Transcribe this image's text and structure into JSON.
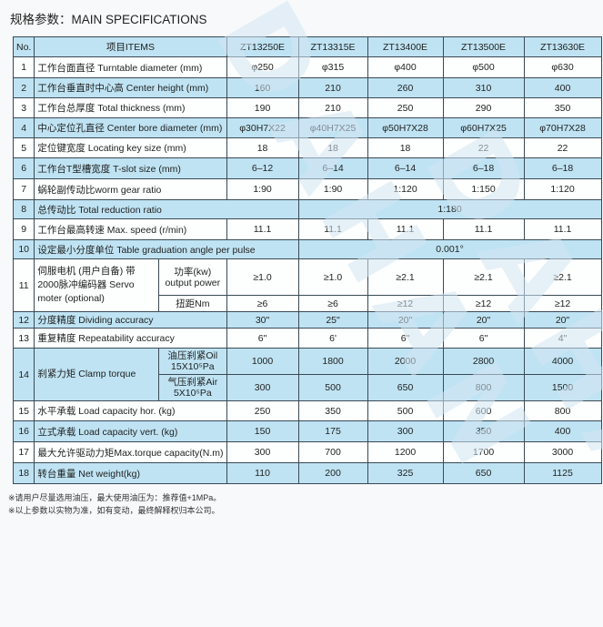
{
  "title": "规格参数：MAIN SPECIFICATIONS",
  "watermark": "DAHAN",
  "colors": {
    "row_blue": "#bfe3f3",
    "row_white": "#fdfefe",
    "border": "#3a4a55"
  },
  "header": {
    "no": "No.",
    "items": "项目ITEMS",
    "models": [
      "ZT13250E",
      "ZT13315E",
      "ZT13400E",
      "ZT13500E",
      "ZT13630E"
    ]
  },
  "rows": [
    {
      "no": "1",
      "label": "工作台面直径  Turntable diameter (mm)",
      "values": [
        "φ250",
        "φ315",
        "φ400",
        "φ500",
        "φ630"
      ]
    },
    {
      "no": "2",
      "label": "工作台垂直时中心高  Center height (mm)",
      "values": [
        "160",
        "210",
        "260",
        "310",
        "400"
      ]
    },
    {
      "no": "3",
      "label": "工作台总厚度  Total thickness (mm)",
      "values": [
        "190",
        "210",
        "250",
        "290",
        "350"
      ]
    },
    {
      "no": "4",
      "label": "中心定位孔直径  Center bore diameter (mm)",
      "values": [
        "φ30H7X22",
        "φ40H7X25",
        "φ50H7X28",
        "φ60H7X25",
        "φ70H7X28"
      ]
    },
    {
      "no": "5",
      "label": "定位键宽度  Locating key size (mm)",
      "values": [
        "18",
        "18",
        "18",
        "22",
        "22"
      ]
    },
    {
      "no": "6",
      "label": "工作台T型槽宽度  T-slot size (mm)",
      "values": [
        "6–12",
        "6–14",
        "6–14",
        "6–18",
        "6–18"
      ]
    },
    {
      "no": "7",
      "label": "蜗轮副传动比worm gear ratio",
      "values": [
        "1:90",
        "1:90",
        "1:120",
        "1:150",
        "1:120"
      ]
    },
    {
      "no": "8",
      "label": "总传动比  Total reduction ratio",
      "span": "1:180"
    },
    {
      "no": "9",
      "label": "工作台最高转速  Max. speed  (r/min)",
      "values": [
        "11.1",
        "11.1",
        "11.1",
        "11.1",
        "11.1"
      ]
    },
    {
      "no": "10",
      "label": "设定最小分度单位 Table graduation angle per pulse",
      "span": "0.001°"
    },
    {
      "no": "11",
      "label": "伺服电机 (用户自备) 带2000脉冲编码器 Servo moter (optional)",
      "subs": [
        {
          "label": "功率(kw) output power",
          "values": [
            "≥1.0",
            "≥1.0",
            "≥2.1",
            "≥2.1",
            "≥2.1"
          ]
        },
        {
          "label": "扭距Nm",
          "values": [
            "≥6",
            "≥6",
            "≥12",
            "≥12",
            "≥12"
          ]
        }
      ]
    },
    {
      "no": "12",
      "label": "分度精度  Dividing accuracy",
      "values": [
        "30\"",
        "25\"",
        "20\"",
        "20\"",
        "20\""
      ]
    },
    {
      "no": "13",
      "label": "重复精度  Repeatability accuracy",
      "values": [
        "6\"",
        "6'",
        "6\"",
        "6\"",
        "4\""
      ]
    },
    {
      "no": "14",
      "label": "刹紧力矩  Clamp torque",
      "subs": [
        {
          "label": "油压刹紧Oil 15X10⁵Pa",
          "values": [
            "1000",
            "1800",
            "2000",
            "2800",
            "4000"
          ]
        },
        {
          "label": "气压刹紧Air 5X10⁵Pa",
          "values": [
            "300",
            "500",
            "650",
            "800",
            "1500"
          ]
        }
      ]
    },
    {
      "no": "15",
      "label": "水平承载  Load capacity hor.  (kg)",
      "values": [
        "250",
        "350",
        "500",
        "600",
        "800"
      ]
    },
    {
      "no": "16",
      "label": "立式承载  Load capacity vert.  (kg)",
      "values": [
        "150",
        "175",
        "300",
        "350",
        "400"
      ]
    },
    {
      "no": "17",
      "label": "最大允许驱动力矩Max.torque capacity(N.m)",
      "values": [
        "300",
        "700",
        "1200",
        "1700",
        "3000"
      ]
    },
    {
      "no": "18",
      "label": "转台重量  Net weight(kg)",
      "values": [
        "110",
        "200",
        "325",
        "650",
        "1125"
      ]
    }
  ],
  "notes": [
    "※请用户尽量选用油压，最大使用油压为：推荐值+1MPa。",
    "※以上参数以实物为准，如有变动，最终解释权归本公司。"
  ]
}
